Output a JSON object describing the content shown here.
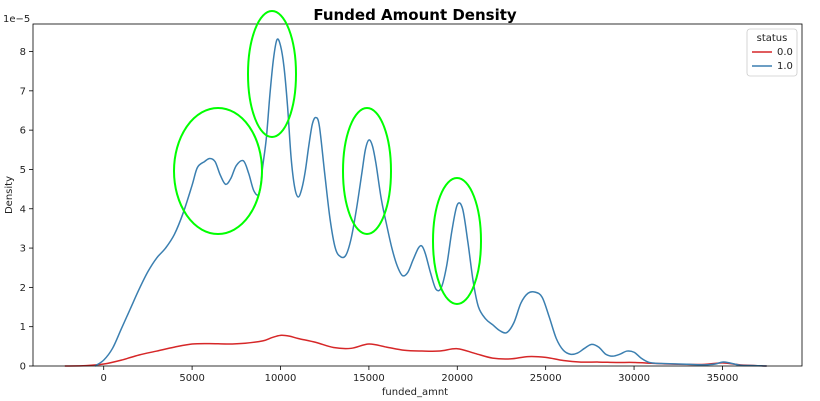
{
  "chart_data": {
    "type": "line",
    "title": "Funded Amount Density",
    "xlabel": "funded_amnt",
    "ylabel": "Density",
    "y_scale_label": "1e−5",
    "xlim": [
      -4000,
      39500
    ],
    "ylim": [
      0,
      8.7
    ],
    "y_unit_multiplier": 1e-05,
    "x_ticks": [
      0,
      5000,
      10000,
      15000,
      20000,
      25000,
      30000,
      35000
    ],
    "x_tick_labels": [
      "0",
      "5000",
      "10000",
      "15000",
      "20000",
      "25000",
      "30000",
      "35000"
    ],
    "y_ticks": [
      0,
      1,
      2,
      3,
      4,
      5,
      6,
      7,
      8
    ],
    "y_tick_labels": [
      "0",
      "1",
      "2",
      "3",
      "4",
      "5",
      "6",
      "7",
      "8"
    ],
    "grid": false,
    "legend": {
      "title": "status",
      "placement": "top-right"
    },
    "series": [
      {
        "name": "0.0",
        "color": "#d62728",
        "x": [
          -2200,
          -1000,
          0,
          1000,
          2000,
          3000,
          4000,
          5000,
          6000,
          7000,
          8000,
          9000,
          9500,
          10000,
          10500,
          11000,
          12000,
          13000,
          14000,
          15000,
          16000,
          17000,
          18000,
          19000,
          20000,
          21000,
          22000,
          23000,
          24000,
          25000,
          26000,
          27000,
          28000,
          29000,
          30000,
          31000,
          32000,
          33000,
          34000,
          35000,
          36000,
          37500
        ],
        "y": [
          0,
          0.01,
          0.05,
          0.15,
          0.28,
          0.38,
          0.48,
          0.56,
          0.57,
          0.56,
          0.58,
          0.64,
          0.72,
          0.78,
          0.76,
          0.7,
          0.6,
          0.47,
          0.45,
          0.56,
          0.48,
          0.4,
          0.38,
          0.38,
          0.44,
          0.32,
          0.2,
          0.18,
          0.24,
          0.22,
          0.14,
          0.1,
          0.1,
          0.09,
          0.09,
          0.07,
          0.05,
          0.04,
          0.04,
          0.08,
          0.03,
          0
        ]
      },
      {
        "name": "1.0",
        "color": "#3b7fb0",
        "x": [
          -500,
          0,
          500,
          1000,
          1500,
          2000,
          2500,
          3000,
          3500,
          4000,
          4500,
          5000,
          5300,
          5700,
          6000,
          6300,
          6600,
          6900,
          7200,
          7500,
          7900,
          8200,
          8500,
          8800,
          9000,
          9200,
          9400,
          9600,
          9800,
          10000,
          10200,
          10400,
          10600,
          10800,
          11000,
          11200,
          11400,
          11600,
          11800,
          12000,
          12200,
          12500,
          12800,
          13100,
          13400,
          13700,
          14000,
          14300,
          14600,
          14800,
          15000,
          15200,
          15400,
          15700,
          16000,
          16300,
          16600,
          16900,
          17200,
          17500,
          17800,
          18000,
          18200,
          18500,
          18800,
          19100,
          19400,
          19700,
          20000,
          20300,
          20600,
          20900,
          21200,
          21600,
          22000,
          22400,
          22800,
          23200,
          23600,
          24000,
          24400,
          24800,
          25200,
          25600,
          26000,
          26400,
          26800,
          27200,
          27600,
          28000,
          28400,
          28800,
          29200,
          29600,
          30000,
          30400,
          30800,
          31200,
          31800,
          32500,
          33200,
          34000,
          34600,
          35000,
          35400,
          36000,
          36800,
          37500
        ],
        "y": [
          0,
          0.15,
          0.45,
          0.95,
          1.45,
          1.95,
          2.4,
          2.75,
          3.0,
          3.35,
          3.9,
          4.6,
          5.05,
          5.2,
          5.28,
          5.2,
          4.85,
          4.62,
          4.78,
          5.1,
          5.22,
          4.9,
          4.45,
          4.4,
          5.1,
          5.8,
          6.9,
          7.8,
          8.3,
          8.15,
          7.6,
          6.6,
          5.3,
          4.55,
          4.3,
          4.5,
          4.95,
          5.6,
          6.15,
          6.32,
          6.1,
          4.9,
          3.75,
          3.0,
          2.78,
          2.82,
          3.25,
          4.0,
          4.9,
          5.5,
          5.75,
          5.6,
          5.15,
          4.25,
          3.6,
          3.0,
          2.55,
          2.3,
          2.38,
          2.7,
          3.0,
          3.05,
          2.85,
          2.35,
          1.95,
          2.0,
          2.55,
          3.45,
          4.1,
          4.0,
          3.15,
          2.15,
          1.5,
          1.2,
          1.05,
          0.9,
          0.85,
          1.1,
          1.6,
          1.85,
          1.88,
          1.75,
          1.25,
          0.7,
          0.4,
          0.3,
          0.33,
          0.45,
          0.55,
          0.48,
          0.3,
          0.25,
          0.3,
          0.38,
          0.35,
          0.2,
          0.1,
          0.07,
          0.06,
          0.05,
          0.04,
          0.03,
          0.05,
          0.1,
          0.08,
          0.02,
          0.01,
          0
        ]
      }
    ]
  }
}
